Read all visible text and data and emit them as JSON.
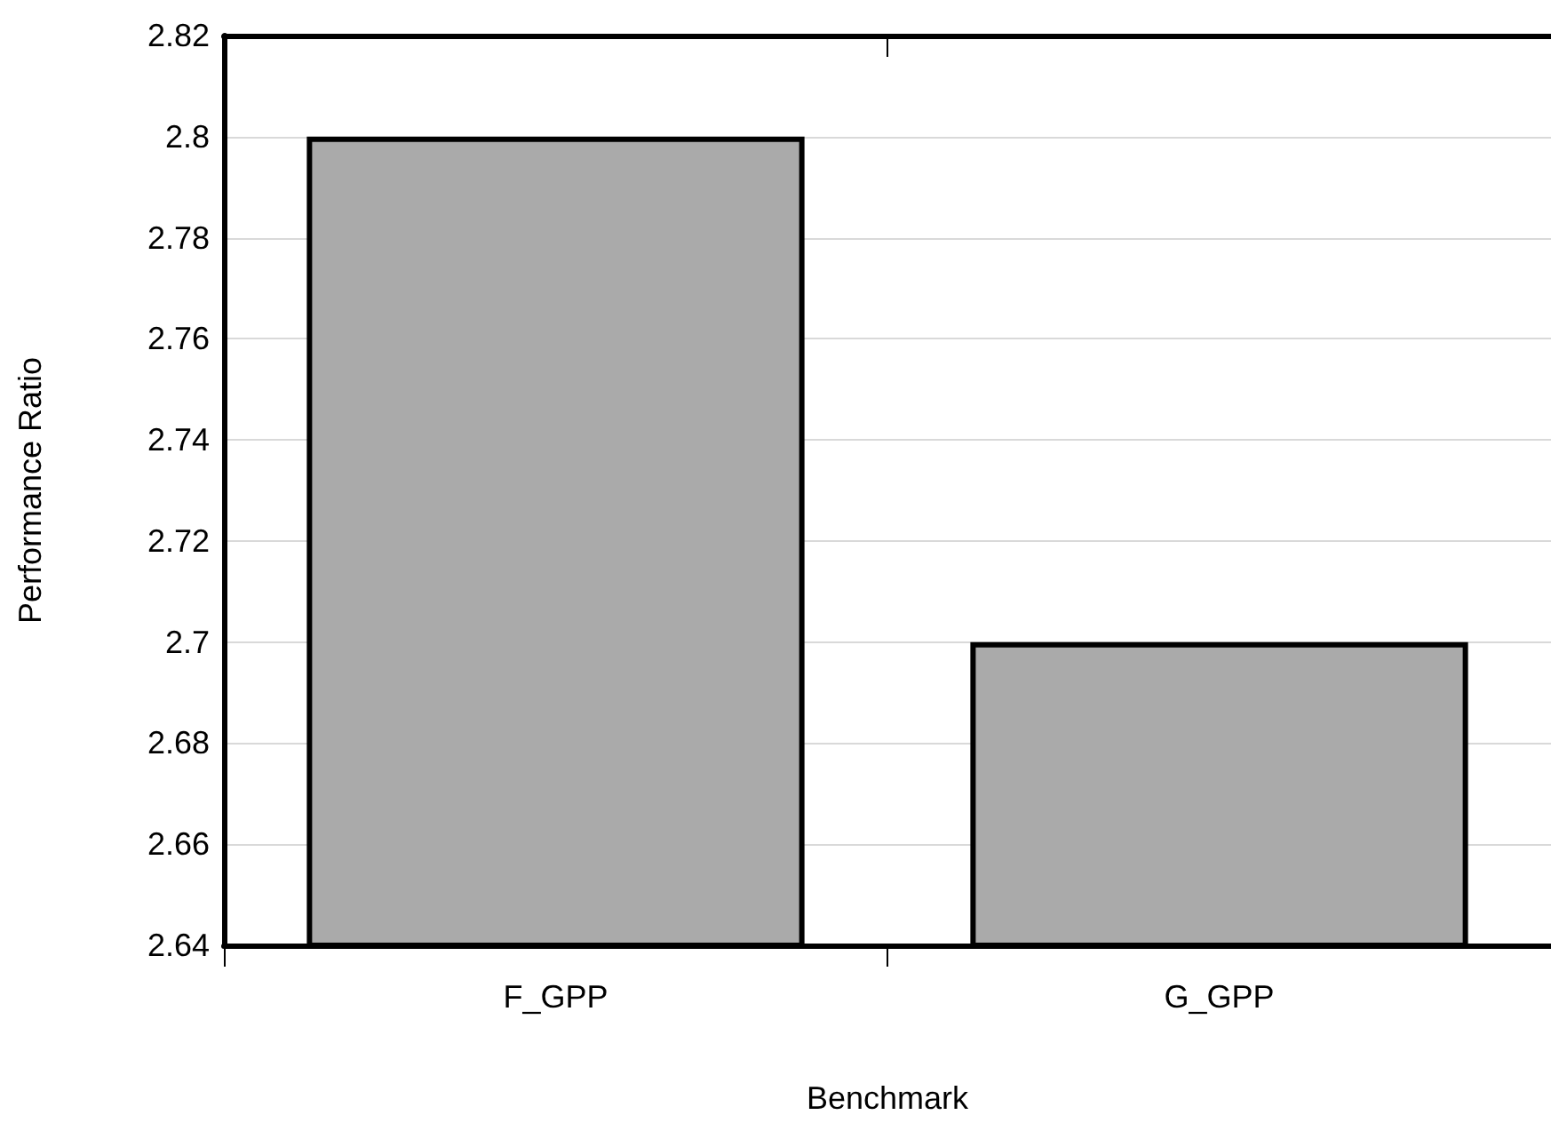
{
  "chart_data": {
    "type": "bar",
    "xlabel": "Benchmark",
    "ylabel": "Performance Ratio",
    "categories": [
      "F_GPP",
      "G_GPP"
    ],
    "values": [
      2.8,
      2.7
    ],
    "color": "#aaaaaa",
    "ylim": [
      2.64,
      2.82
    ],
    "yticks": [
      2.64,
      2.66,
      2.68,
      2.7,
      2.72,
      2.74,
      2.76,
      2.78,
      2.8,
      2.82
    ],
    "grid": "y"
  }
}
